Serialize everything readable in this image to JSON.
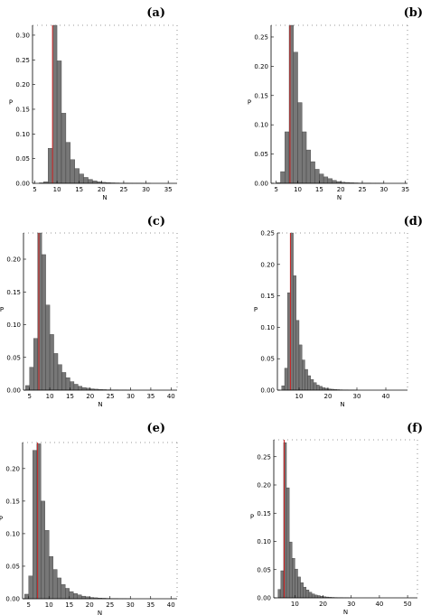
{
  "chart_data": [
    {
      "panel": "(a)",
      "type": "bar",
      "xlabel": "N",
      "ylabel": "P",
      "xlim": [
        4.5,
        37
      ],
      "ylim": [
        0,
        0.32
      ],
      "xticks": [
        5,
        10,
        15,
        20,
        25,
        30,
        35
      ],
      "yticks": [
        0.0,
        0.05,
        0.1,
        0.15,
        0.2,
        0.25,
        0.3
      ],
      "x_start": 6,
      "bin_width": 1,
      "values": [
        0.001,
        0.003,
        0.071,
        0.325,
        0.248,
        0.142,
        0.083,
        0.048,
        0.03,
        0.019,
        0.012,
        0.008,
        0.005,
        0.003,
        0.002,
        0.0015,
        0.001,
        0.0008,
        0.0005,
        0.0004,
        0.0003,
        0.0002,
        0.0002,
        0.0001,
        0.0001
      ],
      "marker_x": 9.0
    },
    {
      "panel": "(b)",
      "type": "bar",
      "xlabel": "N",
      "ylabel": "P",
      "xlim": [
        3.8,
        35.5
      ],
      "ylim": [
        0,
        0.27
      ],
      "xticks": [
        5,
        10,
        15,
        20,
        25,
        30,
        35
      ],
      "yticks": [
        0.0,
        0.05,
        0.1,
        0.15,
        0.2,
        0.25
      ],
      "x_start": 5,
      "bin_width": 1,
      "values": [
        0.001,
        0.02,
        0.088,
        0.27,
        0.224,
        0.138,
        0.088,
        0.057,
        0.037,
        0.024,
        0.016,
        0.011,
        0.008,
        0.005,
        0.003,
        0.002,
        0.0015,
        0.001,
        0.0008,
        0.0006,
        0.0004,
        0.0003,
        0.0002,
        0.0002,
        0.0001
      ],
      "marker_x": 8.2
    },
    {
      "panel": "(c)",
      "type": "bar",
      "xlabel": "N",
      "ylabel": "P",
      "xlim": [
        3.5,
        41.5
      ],
      "ylim": [
        0,
        0.24
      ],
      "xticks": [
        5,
        10,
        15,
        20,
        25,
        30,
        35,
        40
      ],
      "yticks": [
        0.0,
        0.05,
        0.1,
        0.15,
        0.2
      ],
      "x_start": 4,
      "bin_width": 1,
      "values": [
        0.007,
        0.035,
        0.079,
        0.24,
        0.207,
        0.13,
        0.085,
        0.056,
        0.039,
        0.027,
        0.019,
        0.013,
        0.009,
        0.006,
        0.004,
        0.003,
        0.002,
        0.0015,
        0.001,
        0.0008,
        0.0006,
        0.0004,
        0.0003,
        0.0002,
        0.0002,
        0.0001
      ],
      "marker_x": 7.3
    },
    {
      "panel": "(d)",
      "type": "bar",
      "xlabel": "N",
      "ylabel": "P",
      "xlim": [
        2.5,
        47.5
      ],
      "ylim": [
        0,
        0.25
      ],
      "xticks": [
        10,
        20,
        30,
        40
      ],
      "yticks": [
        0.0,
        0.05,
        0.1,
        0.15,
        0.2,
        0.25
      ],
      "x_start": 4,
      "bin_width": 1,
      "values": [
        0.007,
        0.035,
        0.155,
        0.25,
        0.182,
        0.111,
        0.072,
        0.048,
        0.033,
        0.023,
        0.017,
        0.012,
        0.008,
        0.006,
        0.004,
        0.003,
        0.002,
        0.0015,
        0.001,
        0.0008,
        0.0006,
        0.0004,
        0.0003,
        0.0002,
        0.0002,
        0.0001
      ],
      "marker_x": 7.0
    },
    {
      "panel": "(e)",
      "type": "bar",
      "xlabel": "N",
      "ylabel": "P",
      "xlim": [
        3.5,
        41.5
      ],
      "ylim": [
        0,
        0.24
      ],
      "xticks": [
        5,
        10,
        15,
        20,
        25,
        30,
        35,
        40
      ],
      "yticks": [
        0.0,
        0.05,
        0.1,
        0.15,
        0.2
      ],
      "x_start": 4,
      "bin_width": 1,
      "values": [
        0.007,
        0.035,
        0.228,
        0.238,
        0.15,
        0.105,
        0.065,
        0.045,
        0.032,
        0.022,
        0.016,
        0.011,
        0.008,
        0.006,
        0.004,
        0.003,
        0.002,
        0.0015,
        0.001,
        0.0008,
        0.0006,
        0.0004,
        0.0003,
        0.0002,
        0.0002,
        0.0001
      ],
      "marker_x": 7.2
    },
    {
      "panel": "(f)",
      "type": "bar",
      "xlabel": "N",
      "ylabel": "P",
      "xlim": [
        2.5,
        53.5
      ],
      "ylim": [
        0,
        0.28
      ],
      "xticks": [
        10,
        20,
        30,
        40,
        50
      ],
      "yticks": [
        0.0,
        0.05,
        0.1,
        0.15,
        0.2,
        0.25
      ],
      "x_start": 4,
      "bin_width": 1,
      "values": [
        0.015,
        0.048,
        0.275,
        0.195,
        0.099,
        0.07,
        0.051,
        0.037,
        0.027,
        0.019,
        0.014,
        0.01,
        0.007,
        0.005,
        0.004,
        0.003,
        0.002,
        0.0015,
        0.001,
        0.0008,
        0.0006,
        0.0004,
        0.0003,
        0.0002,
        0.0002,
        0.0001
      ],
      "marker_x": 6.2
    }
  ],
  "style": {
    "bar_fill": "#777777",
    "marker_color": "#cc2222",
    "axis_color": "#000000"
  }
}
